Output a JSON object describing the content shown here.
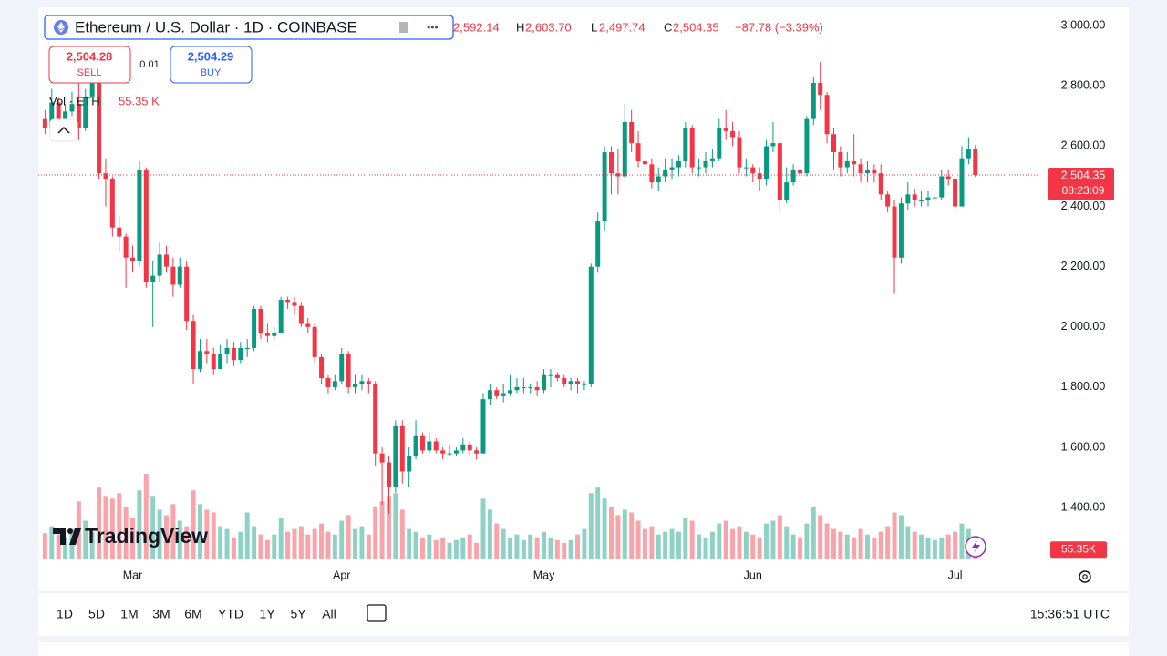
{
  "chart_data": {
    "type": "candlestick",
    "header": {
      "symbol": "Ethereum / U.S. Dollar · 1D · COINBASE",
      "open": "2,592.14",
      "high_label": "H",
      "high": "2,603.70",
      "low_label": "L",
      "low": "2,497.74",
      "close_label": "C",
      "close": "2,504.35",
      "change": "−87.78 (−3.39%)"
    },
    "trade": {
      "sell_price": "2,504.28",
      "sell": "SELL",
      "spread": "0.01",
      "buy_price": "2,504.29",
      "buy": "BUY"
    },
    "volume_legend": "Vol · ETH",
    "volume_value_label": "55.35 K",
    "volume_axis_label": "55.35K",
    "price_label": "2,504.35",
    "countdown": "08:23:09",
    "logo": "TradingView",
    "ranges": [
      "1D",
      "5D",
      "1M",
      "3M",
      "6M",
      "YTD",
      "1Y",
      "5Y",
      "All"
    ],
    "clock": "15:36:51 UTC",
    "up_color": "#089981",
    "down_color": "#f23645",
    "grid": false,
    "xlim": [
      -1,
      147.5
    ],
    "xticks": [
      {
        "value": 13,
        "label": "Mar"
      },
      {
        "value": 44,
        "label": "Apr"
      },
      {
        "value": 74,
        "label": "May"
      },
      {
        "value": 105,
        "label": "Jun"
      },
      {
        "value": 135,
        "label": "Jul"
      }
    ],
    "ylim": [
      1210,
      3055
    ],
    "yticks": [
      {
        "value": 1400,
        "label": "1,400.00"
      },
      {
        "value": 1600,
        "label": "1,600.00"
      },
      {
        "value": 1800,
        "label": "1,800.00"
      },
      {
        "value": 2000,
        "label": "2,000.00"
      },
      {
        "value": 2200,
        "label": "2,200.00"
      },
      {
        "value": 2400,
        "label": "2,400.00"
      },
      {
        "value": 2600,
        "label": "2,600.00"
      },
      {
        "value": 2800,
        "label": "2,800.00"
      },
      {
        "value": 3000,
        "label": "3,000.00"
      }
    ],
    "open": [
      2690,
      2660,
      2745,
      2670,
      2715,
      2740,
      2660,
      2765,
      2820,
      2510,
      2490,
      2330,
      2300,
      2230,
      2220,
      2520,
      2150,
      2170,
      2240,
      2200,
      2140,
      2200,
      2020,
      1860,
      1920,
      1910,
      1860,
      1910,
      1930,
      1890,
      1930,
      1930,
      2060,
      1980,
      1970,
      1980,
      2090,
      2080,
      2070,
      2010,
      2000,
      1900,
      1830,
      1800,
      1820,
      1910,
      1800,
      1810,
      1820,
      1810,
      1580,
      1550,
      1470,
      1670,
      1520,
      1570,
      1640,
      1590,
      1620,
      1590,
      1580,
      1580,
      1590,
      1610,
      1590,
      1580,
      1760,
      1790,
      1770,
      1780,
      1790,
      1800,
      1800,
      1800,
      1790,
      1840,
      1840,
      1830,
      1810,
      1820,
      1810,
      1810,
      2200,
      2350,
      2580,
      2510,
      2500,
      2680,
      2610,
      2550,
      2540,
      2480,
      2500,
      2520,
      2530,
      2550,
      2660,
      2530,
      2530,
      2550,
      2560,
      2660,
      2650,
      2630,
      2530,
      2530,
      2510,
      2490,
      2600,
      2610,
      2420,
      2480,
      2520,
      2510,
      2690,
      2810,
      2770,
      2640,
      2580,
      2530,
      2550,
      2540,
      2510,
      2520,
      2510,
      2440,
      2400,
      2230,
      2410,
      2440,
      2420,
      2420,
      2430,
      2430,
      2500,
      2490,
      2400,
      2560,
      2592.14
    ],
    "high": [
      2720,
      2790,
      2760,
      2740,
      2780,
      2850,
      2790,
      2850,
      2830,
      2560,
      2500,
      2370,
      2310,
      2270,
      2550,
      2530,
      2220,
      2280,
      2270,
      2230,
      2230,
      2220,
      2040,
      1960,
      1960,
      1930,
      1940,
      1960,
      1950,
      1950,
      1960,
      2070,
      2070,
      2010,
      2000,
      2100,
      2100,
      2100,
      2080,
      2030,
      2010,
      1910,
      1840,
      1840,
      1930,
      1920,
      1840,
      1840,
      1830,
      1820,
      1600,
      1570,
      1690,
      1690,
      1600,
      1690,
      1650,
      1650,
      1630,
      1600,
      1610,
      1600,
      1630,
      1620,
      1600,
      1780,
      1810,
      1800,
      1810,
      1840,
      1830,
      1830,
      1810,
      1820,
      1860,
      1860,
      1850,
      1840,
      1830,
      1830,
      1820,
      2210,
      2380,
      2600,
      2600,
      2590,
      2740,
      2720,
      2650,
      2560,
      2560,
      2530,
      2560,
      2560,
      2570,
      2680,
      2670,
      2560,
      2580,
      2590,
      2690,
      2720,
      2680,
      2650,
      2560,
      2540,
      2530,
      2620,
      2680,
      2620,
      2530,
      2540,
      2540,
      2700,
      2830,
      2880,
      2780,
      2660,
      2600,
      2580,
      2640,
      2560,
      2550,
      2540,
      2540,
      2450,
      2420,
      2430,
      2480,
      2460,
      2450,
      2450,
      2440,
      2520,
      2520,
      2500,
      2600,
      2630,
      2603.7
    ],
    "low": [
      2640,
      2650,
      2650,
      2660,
      2700,
      2620,
      2650,
      2760,
      2490,
      2400,
      2300,
      2250,
      2130,
      2180,
      2200,
      2130,
      2000,
      2150,
      2180,
      2100,
      2130,
      1990,
      1810,
      1850,
      1880,
      1840,
      1860,
      1880,
      1870,
      1880,
      1900,
      1920,
      1960,
      1950,
      1960,
      1980,
      2060,
      2040,
      2000,
      1980,
      1880,
      1810,
      1780,
      1790,
      1810,
      1780,
      1780,
      1790,
      1780,
      1540,
      1410,
      1380,
      1450,
      1480,
      1470,
      1560,
      1580,
      1580,
      1580,
      1560,
      1570,
      1570,
      1580,
      1570,
      1560,
      1580,
      1740,
      1760,
      1750,
      1770,
      1780,
      1780,
      1780,
      1770,
      1780,
      1800,
      1820,
      1800,
      1790,
      1780,
      1790,
      1800,
      2180,
      2320,
      2440,
      2440,
      2490,
      2580,
      2530,
      2460,
      2460,
      2450,
      2480,
      2490,
      2500,
      2530,
      2510,
      2500,
      2510,
      2530,
      2550,
      2620,
      2600,
      2510,
      2500,
      2480,
      2450,
      2470,
      2580,
      2380,
      2410,
      2470,
      2490,
      2500,
      2670,
      2720,
      2610,
      2520,
      2500,
      2510,
      2500,
      2480,
      2480,
      2480,
      2420,
      2380,
      2110,
      2210,
      2390,
      2400,
      2400,
      2400,
      2420,
      2420,
      2470,
      2380,
      2400,
      2540,
      2497.74
    ],
    "close": [
      2660,
      2745,
      2670,
      2715,
      2740,
      2660,
      2765,
      2820,
      2510,
      2490,
      2330,
      2300,
      2230,
      2220,
      2520,
      2150,
      2170,
      2240,
      2200,
      2140,
      2200,
      2020,
      1860,
      1920,
      1910,
      1860,
      1910,
      1930,
      1890,
      1930,
      1930,
      2060,
      1980,
      1970,
      1980,
      2090,
      2080,
      2070,
      2010,
      2000,
      1900,
      1830,
      1800,
      1820,
      1910,
      1800,
      1810,
      1820,
      1810,
      1580,
      1550,
      1470,
      1670,
      1520,
      1570,
      1640,
      1590,
      1620,
      1590,
      1580,
      1580,
      1590,
      1610,
      1590,
      1580,
      1760,
      1790,
      1770,
      1780,
      1790,
      1800,
      1800,
      1800,
      1790,
      1840,
      1840,
      1830,
      1810,
      1820,
      1810,
      1810,
      2200,
      2350,
      2580,
      2510,
      2500,
      2680,
      2610,
      2550,
      2540,
      2480,
      2500,
      2520,
      2530,
      2550,
      2660,
      2530,
      2530,
      2550,
      2560,
      2660,
      2650,
      2630,
      2530,
      2530,
      2510,
      2490,
      2600,
      2610,
      2420,
      2480,
      2520,
      2510,
      2690,
      2810,
      2770,
      2640,
      2580,
      2530,
      2550,
      2540,
      2510,
      2520,
      2510,
      2440,
      2400,
      2230,
      2410,
      2440,
      2420,
      2420,
      2430,
      2430,
      2500,
      2490,
      2400,
      2560,
      2590,
      2504.35
    ],
    "volume": [
      95,
      120,
      90,
      80,
      110,
      210,
      140,
      100,
      260,
      230,
      220,
      240,
      190,
      150,
      250,
      310,
      230,
      180,
      160,
      200,
      140,
      120,
      250,
      200,
      180,
      170,
      120,
      110,
      80,
      100,
      170,
      120,
      90,
      70,
      90,
      150,
      100,
      110,
      120,
      90,
      110,
      130,
      100,
      90,
      140,
      160,
      110,
      120,
      90,
      190,
      210,
      230,
      240,
      180,
      110,
      100,
      80,
      90,
      70,
      80,
      60,
      70,
      80,
      90,
      60,
      220,
      180,
      130,
      110,
      80,
      90,
      70,
      90,
      80,
      100,
      80,
      70,
      60,
      70,
      90,
      110,
      240,
      260,
      220,
      190,
      160,
      180,
      170,
      140,
      110,
      120,
      90,
      100,
      110,
      100,
      150,
      140,
      90,
      80,
      100,
      130,
      140,
      110,
      120,
      100,
      90,
      80,
      130,
      140,
      160,
      120,
      90,
      80,
      130,
      190,
      160,
      130,
      110,
      100,
      90,
      80,
      110,
      90,
      80,
      100,
      120,
      170,
      160,
      120,
      100,
      90,
      80,
      70,
      80,
      90,
      100,
      130,
      110,
      55.35
    ]
  }
}
